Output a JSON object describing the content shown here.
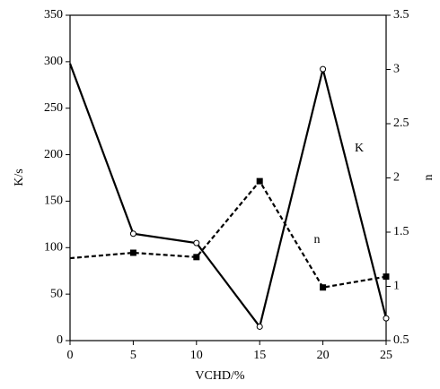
{
  "chart_data": {
    "type": "line",
    "x_label": "VCHD/%",
    "y_label": "K/s",
    "y2_label": "n",
    "x": [
      0,
      5,
      10,
      15,
      20,
      25
    ],
    "series": [
      {
        "name": "K",
        "color": "#000000",
        "dash": false,
        "marker": "circle",
        "values": [
          298,
          115,
          105,
          15,
          292,
          24
        ]
      },
      {
        "name": "n",
        "color": "#000000",
        "dash": true,
        "marker": "square",
        "axis": "y2",
        "values": [
          1.26,
          1.31,
          1.27,
          1.97,
          0.99,
          1.09
        ]
      }
    ],
    "xlim": [
      0,
      25
    ],
    "xticks": [
      0,
      5,
      10,
      15,
      20,
      25
    ],
    "ylim": [
      0,
      350
    ],
    "yticks": [
      0,
      50,
      100,
      150,
      200,
      250,
      300,
      350
    ],
    "y2lim": [
      0.5,
      3.5
    ],
    "y2ticks": [
      0.5,
      1,
      1.5,
      2,
      2.5,
      3,
      3.5
    ],
    "grid": false
  }
}
